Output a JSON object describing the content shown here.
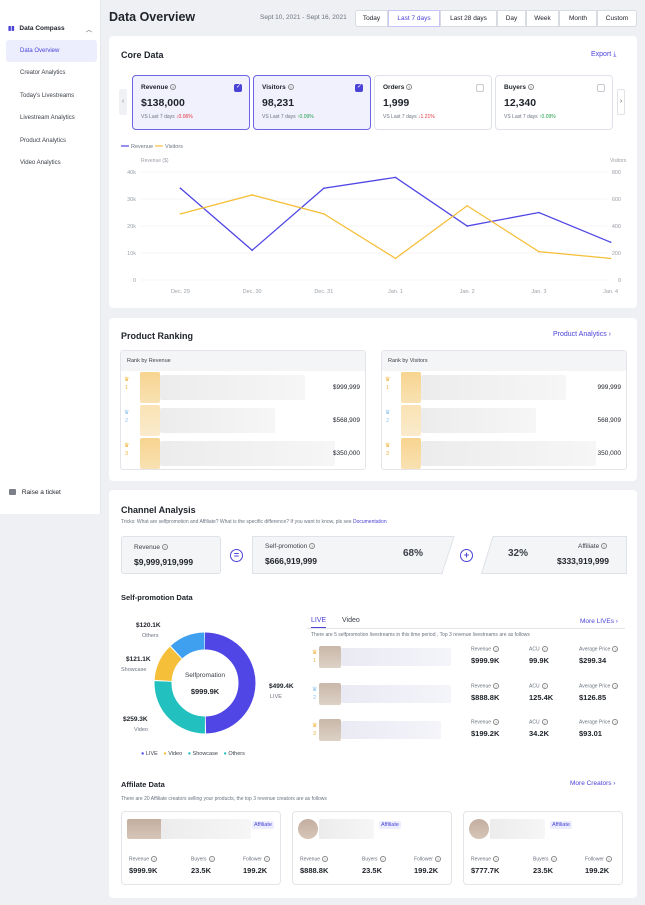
{
  "sidebar": {
    "title": "Data Compass",
    "items": [
      {
        "label": "Data Overview"
      },
      {
        "label": "Creator Analytics"
      },
      {
        "label": "Today's Livestreams"
      },
      {
        "label": "Livestream Analytics"
      },
      {
        "label": "Product Analytics"
      },
      {
        "label": "Video Analytics"
      }
    ],
    "ticket_label": "Raise a ticket"
  },
  "header": {
    "title": "Data Overview",
    "date_range": "Sept 10, 2021 - Sept 16, 2021",
    "ranges": [
      "Today",
      "Last 7 days",
      "Last 28 days",
      "Day",
      "Week",
      "Month",
      "Custom"
    ],
    "active_range": "Last 7 days"
  },
  "core": {
    "title": "Core Data",
    "export_label": "Export",
    "metrics": [
      {
        "label": "Revenue",
        "value": "$138,000",
        "compare": "VS Last 7 days",
        "change": "0.06%",
        "dir": "down",
        "checked": true
      },
      {
        "label": "Visitors",
        "value": "98,231",
        "compare": "VS Last 7 days",
        "change": "0.09%",
        "dir": "up",
        "checked": true
      },
      {
        "label": "Orders",
        "value": "1,999",
        "compare": "VS Last 7 days",
        "change": "1.21%",
        "dir": "down",
        "checked": false
      },
      {
        "label": "Buyers",
        "value": "12,340",
        "compare": "VS Last 7 days",
        "change": "0.09%",
        "dir": "up",
        "checked": false
      }
    ]
  },
  "chart_data": {
    "type": "line",
    "x": [
      "Dec. 29",
      "Dec. 30",
      "Dec. 31",
      "Jan. 1",
      "Jan. 2",
      "Jan. 3",
      "Jan. 4"
    ],
    "series": [
      {
        "name": "Revenue",
        "axis": "left",
        "color": "#5046e5",
        "values": [
          34000,
          11000,
          34000,
          38000,
          20000,
          25000,
          14000
        ]
      },
      {
        "name": "Visitors",
        "axis": "right",
        "color": "#f6bf3a",
        "values": [
          490,
          630,
          490,
          160,
          550,
          210,
          160
        ]
      }
    ],
    "ylabel_left": "Revenue ($)",
    "ylabel_right": "Visitors",
    "left_ticks": [
      "0",
      "10k",
      "20k",
      "30k",
      "40k"
    ],
    "right_ticks": [
      "0",
      "200",
      "400",
      "600",
      "800"
    ],
    "ylim_left": [
      0,
      40000
    ],
    "ylim_right": [
      0,
      800
    ],
    "grid": true,
    "legend": "top-left"
  },
  "ranking": {
    "title": "Product Ranking",
    "link": "Product Analytics",
    "revenue_head": "Rank by Revenue",
    "visitors_head": "Rank by Visitors",
    "revenue_values": [
      "$999,999",
      "$568,909",
      "$350,000"
    ],
    "visitor_values": [
      "999,999",
      "568,909",
      "350,000"
    ],
    "ranks": [
      "1",
      "2",
      "3"
    ]
  },
  "channel": {
    "title": "Channel Analysis",
    "tip": "Tricks: What are selfpromotion and Affiliate? What is the specific difference? If you want to know, pls see",
    "doc_link": "Documentation",
    "revenue_label": "Revenue",
    "revenue_value": "$9,999,919,999",
    "self_label": "Self-promotion",
    "self_value": "$666,919,999",
    "self_pct": "68%",
    "aff_label": "Affiliate",
    "aff_value": "$333,919,999",
    "aff_pct": "32%"
  },
  "selfpromo": {
    "title": "Self-promotion Data",
    "donut_center_label": "Selfpromation",
    "donut_center_value": "$999.9K",
    "slices": [
      {
        "name": "LIVE",
        "value": "$499.4K",
        "amount": 499.4,
        "color": "#5046e5"
      },
      {
        "name": "Video",
        "value": "$259.3K",
        "amount": 259.3,
        "color": "#22c1bf"
      },
      {
        "name": "Showcase",
        "value": "$121.1K",
        "amount": 121.1,
        "color": "#f6bf3a"
      },
      {
        "name": "Others",
        "value": "$120.1K",
        "amount": 120.1,
        "color": "#3fa0f0"
      }
    ],
    "legend": [
      "LIVE",
      "Video",
      "Showcase",
      "Others"
    ],
    "tabs": [
      "LIVE",
      "Video"
    ],
    "more_link": "More LIVEs",
    "note": "There are 5 selfpromotion livestreams in this time period , Top 3 revenue livestreams are as follows",
    "stat_labels": [
      "Revenue",
      "ACU",
      "Average Price"
    ],
    "rows": [
      {
        "rank": "1",
        "revenue": "$999.9K",
        "acu": "99.9K",
        "price": "$299.34"
      },
      {
        "rank": "2",
        "revenue": "$888.8K",
        "acu": "125.4K",
        "price": "$126.85"
      },
      {
        "rank": "3",
        "revenue": "$199.2K",
        "acu": "34.2K",
        "price": "$93.01"
      }
    ]
  },
  "affiliate": {
    "title": "Affilate Data",
    "more_link": "More Creators",
    "note": "There are 20 Affiliate creators selling your  products, the top 3 revenue creators are as follows",
    "tag": "Affiliate",
    "stat_labels": [
      "Revenue",
      "Buyers",
      "Follower"
    ],
    "cards": [
      {
        "revenue": "$999.9K",
        "buyers": "23.5K",
        "followers": "199.2K"
      },
      {
        "revenue": "$888.8K",
        "buyers": "23.5K",
        "followers": "199.2K"
      },
      {
        "revenue": "$777.7K",
        "buyers": "23.5K",
        "followers": "199.2K"
      }
    ]
  }
}
